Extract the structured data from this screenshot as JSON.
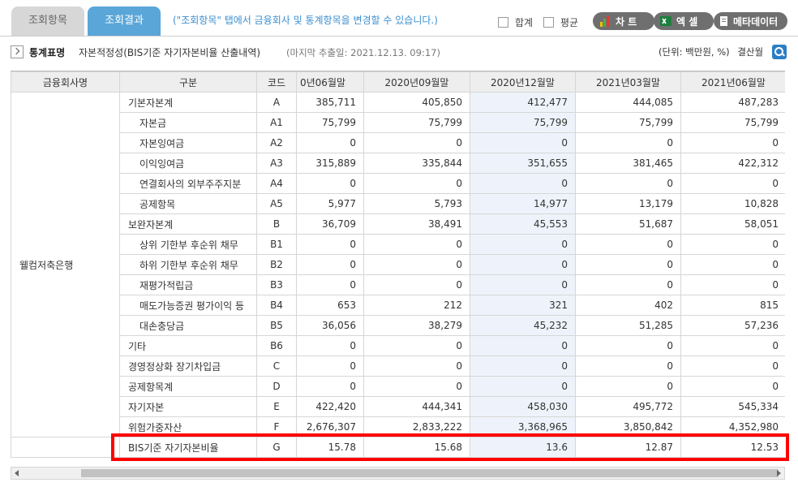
{
  "tabs": [
    {
      "label": "조회항목",
      "active": false
    },
    {
      "label": "조회결과",
      "active": true
    }
  ],
  "hint": "(\"조회항목\" 탭에서 금융회사 및 통계항목을 변경할 수 있습니다.)",
  "options": {
    "sum_label": "합계",
    "avg_label": "평균"
  },
  "buttons": {
    "chart": "차 트",
    "excel": "엑 셀",
    "meta": "메타데이터"
  },
  "stat": {
    "label": "통계표명",
    "title": "자본적정성(BIS기준 자기자본비율 산출내역)",
    "date": "(마지막 추출일: 2021.12.13. 09:17)",
    "unit": "(단위: 백만원, %)",
    "period_type": "결산월"
  },
  "table": {
    "headers": [
      "금융회사명",
      "구분",
      "코드",
      "0년06월말",
      "2020년09월말",
      "2020년12월말",
      "2021년03월말",
      "2021년06월말"
    ],
    "company": "웰컴저축은행",
    "rows": [
      {
        "label": "기본자본계",
        "indent": false,
        "code": "A",
        "values": [
          "385,711",
          "405,850",
          "412,477",
          "444,085",
          "487,283"
        ]
      },
      {
        "label": "자본금",
        "indent": true,
        "code": "A1",
        "values": [
          "75,799",
          "75,799",
          "75,799",
          "75,799",
          "75,799"
        ]
      },
      {
        "label": "자본잉여금",
        "indent": true,
        "code": "A2",
        "values": [
          "0",
          "0",
          "0",
          "0",
          "0"
        ]
      },
      {
        "label": "이익잉여금",
        "indent": true,
        "code": "A3",
        "values": [
          "315,889",
          "335,844",
          "351,655",
          "381,465",
          "422,312"
        ]
      },
      {
        "label": "연결회사의 외부주주지분",
        "indent": true,
        "code": "A4",
        "values": [
          "0",
          "0",
          "0",
          "0",
          "0"
        ]
      },
      {
        "label": "공제항목",
        "indent": true,
        "code": "A5",
        "values": [
          "5,977",
          "5,793",
          "14,977",
          "13,179",
          "10,828"
        ]
      },
      {
        "label": "보완자본계",
        "indent": false,
        "code": "B",
        "values": [
          "36,709",
          "38,491",
          "45,553",
          "51,687",
          "58,051"
        ]
      },
      {
        "label": "상위 기한부 후순위 채무",
        "indent": true,
        "code": "B1",
        "values": [
          "0",
          "0",
          "0",
          "0",
          "0"
        ]
      },
      {
        "label": "하위 기한부 후순위 채무",
        "indent": true,
        "code": "B2",
        "values": [
          "0",
          "0",
          "0",
          "0",
          "0"
        ]
      },
      {
        "label": "재평가적립금",
        "indent": true,
        "code": "B3",
        "values": [
          "0",
          "0",
          "0",
          "0",
          "0"
        ]
      },
      {
        "label": "매도가능증권 평가이익 등",
        "indent": true,
        "code": "B4",
        "values": [
          "653",
          "212",
          "321",
          "402",
          "815"
        ]
      },
      {
        "label": "대손충당금",
        "indent": true,
        "code": "B5",
        "values": [
          "36,056",
          "38,279",
          "45,232",
          "51,285",
          "57,236"
        ]
      },
      {
        "label": "기타",
        "indent": false,
        "code": "B6",
        "values": [
          "0",
          "0",
          "0",
          "0",
          "0"
        ]
      },
      {
        "label": "경영정상화 장기차입금",
        "indent": false,
        "code": "C",
        "values": [
          "0",
          "0",
          "0",
          "0",
          "0"
        ]
      },
      {
        "label": "공제항목계",
        "indent": false,
        "code": "D",
        "values": [
          "0",
          "0",
          "0",
          "0",
          "0"
        ]
      },
      {
        "label": "자기자본",
        "indent": false,
        "code": "E",
        "values": [
          "422,420",
          "444,341",
          "458,030",
          "495,772",
          "545,334"
        ]
      },
      {
        "label": "위험가중자산",
        "indent": false,
        "code": "F",
        "values": [
          "2,676,307",
          "2,833,222",
          "3,368,965",
          "3,850,842",
          "4,352,980"
        ]
      },
      {
        "label": "BIS기준 자기자본비율",
        "indent": false,
        "code": "G",
        "values": [
          "15.78",
          "15.68",
          "13.6",
          "12.87",
          "12.53"
        ]
      }
    ]
  },
  "colors": {
    "accent": "#5aa6d8",
    "highlight_box": "#ff0000",
    "column_highlight": "#eef3fb"
  }
}
